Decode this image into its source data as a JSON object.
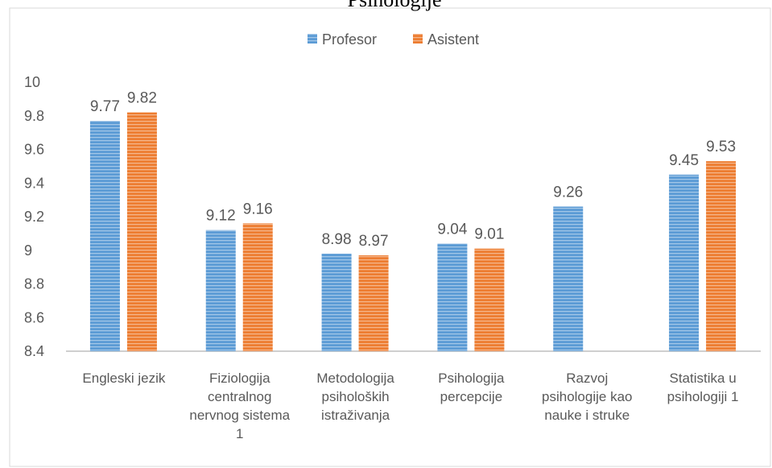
{
  "chart_data": {
    "type": "bar",
    "title": "Psihologije",
    "categories": [
      "Engleski jezik",
      "Fiziologija centralnog nervnog sistema 1",
      "Metodologija psiholoških istraživanja",
      "Psihologija percepcije",
      "Razvoj psihologije kao nauke i struke",
      "Statistika u psihologiji 1"
    ],
    "series": [
      {
        "name": "Profesor",
        "color": "#5b9bd5",
        "values": [
          9.77,
          9.12,
          8.98,
          9.04,
          9.26,
          9.45
        ]
      },
      {
        "name": "Asistent",
        "color": "#ed7d31",
        "values": [
          9.82,
          9.16,
          8.97,
          9.01,
          null,
          9.53
        ]
      }
    ],
    "ylim": [
      8.4,
      10
    ],
    "yticks": [
      8.4,
      8.6,
      8.8,
      9,
      9.2,
      9.4,
      9.6,
      9.8,
      10
    ],
    "grid": false,
    "legend": "top"
  }
}
